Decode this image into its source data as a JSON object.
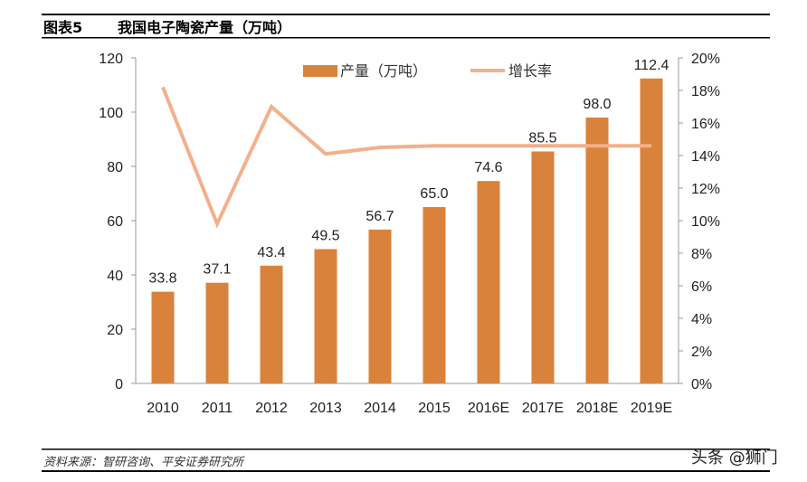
{
  "header": {
    "figure_no": "图表5",
    "title": "我国电子陶瓷产量（万吨）"
  },
  "footer": {
    "source": "资料来源：智研咨询、平安证券研究所",
    "watermark": "头条 @狮门"
  },
  "colors": {
    "bar": "#D9823B",
    "line": "#F2B08C"
  },
  "chart_data": {
    "type": "bar+line",
    "categories": [
      "2010",
      "2011",
      "2012",
      "2013",
      "2014",
      "2015",
      "2016E",
      "2017E",
      "2018E",
      "2019E"
    ],
    "series": [
      {
        "name": "产量（万吨）",
        "type": "bar",
        "axis": "left",
        "values": [
          33.8,
          37.1,
          43.4,
          49.5,
          56.7,
          65.0,
          74.6,
          85.5,
          98.0,
          112.4
        ],
        "labels": [
          "33.8",
          "37.1",
          "43.4",
          "49.5",
          "56.7",
          "65.0",
          "74.6",
          "85.5",
          "98.0",
          "112.4"
        ]
      },
      {
        "name": "增长率",
        "type": "line",
        "axis": "right",
        "values": [
          18.2,
          9.8,
          17.0,
          14.1,
          14.5,
          14.6,
          14.6,
          14.6,
          14.6,
          14.6
        ]
      }
    ],
    "y_left": {
      "ylim": [
        0,
        120
      ],
      "ticks": [
        "0",
        "20",
        "40",
        "60",
        "80",
        "100",
        "120"
      ]
    },
    "y_right": {
      "ylim": [
        0,
        20
      ],
      "ticks": [
        "0%",
        "2%",
        "4%",
        "6%",
        "8%",
        "10%",
        "12%",
        "14%",
        "16%",
        "18%",
        "20%"
      ]
    },
    "legend": "top-center",
    "grid": false
  }
}
